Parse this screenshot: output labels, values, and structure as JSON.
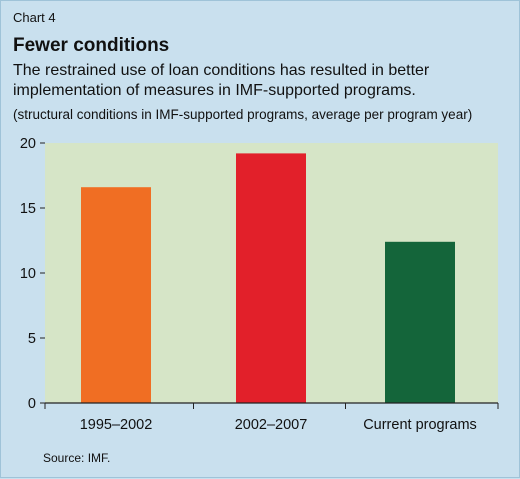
{
  "header": {
    "chart_number": "Chart 4",
    "title": "Fewer conditions",
    "subtitle": "The restrained use of loan conditions has resulted in better implementation of measures in IMF-supported programs.",
    "units": "(structural conditions in IMF-supported programs, average per program year)"
  },
  "footer": {
    "source": "Source: IMF."
  },
  "colors": {
    "background": "#c9e0ee",
    "plot_area": "#d6e5c7"
  },
  "chart_data": {
    "type": "bar",
    "categories": [
      "1995–2002",
      "2002–2007",
      "Current programs"
    ],
    "values": [
      16.6,
      19.2,
      12.4
    ],
    "colors": [
      "#f06e23",
      "#e2202a",
      "#14653a"
    ],
    "ylim": [
      0,
      20
    ],
    "yticks": [
      0,
      5,
      10,
      15,
      20
    ],
    "xlabel": "",
    "ylabel": "",
    "grid": false
  }
}
